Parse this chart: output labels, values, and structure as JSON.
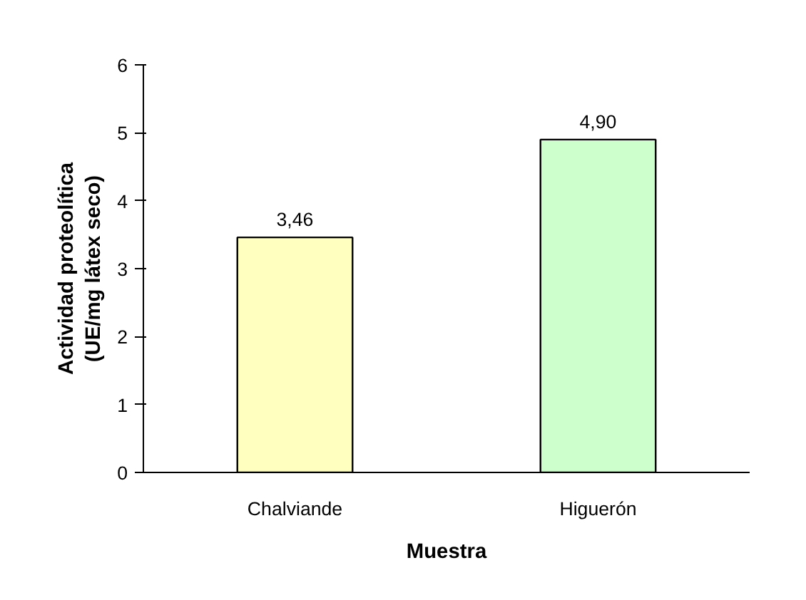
{
  "chart_data": {
    "type": "bar",
    "xlabel": "Muestra",
    "ylabel": "Actividad proteolítica\n(UE/mg látex seco)",
    "categories": [
      "Chalviande",
      "Higuerón"
    ],
    "values": [
      3.46,
      4.9
    ],
    "colors": [
      "#ffffc0",
      "#ccffcc"
    ],
    "value_labels": [
      "3,46",
      "4,90"
    ],
    "ylim": [
      0,
      6
    ],
    "yticks": [
      0,
      1,
      2,
      3,
      4,
      5,
      6
    ],
    "grid": false
  }
}
